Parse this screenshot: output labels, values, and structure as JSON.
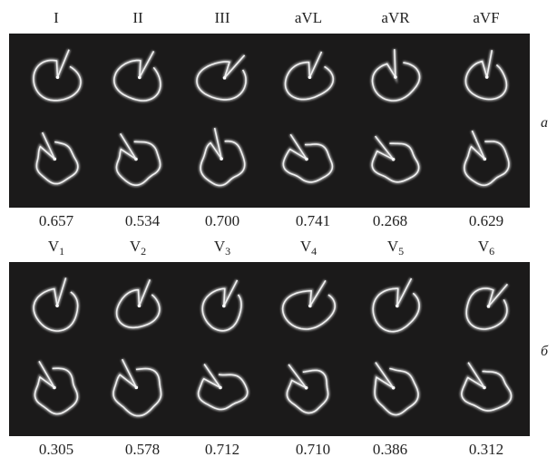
{
  "panels": [
    {
      "label": "а",
      "leads": [
        "I",
        "II",
        "III",
        "aVL",
        "aVR",
        "aVF"
      ],
      "values": [
        "0.657",
        "0.534",
        "0.700",
        "0.741",
        "0.268",
        "0.629"
      ]
    },
    {
      "label": "б",
      "leads": [
        {
          "base": "V",
          "sub": "1"
        },
        {
          "base": "V",
          "sub": "2"
        },
        {
          "base": "V",
          "sub": "3"
        },
        {
          "base": "V",
          "sub": "4"
        },
        {
          "base": "V",
          "sub": "5"
        },
        {
          "base": "V",
          "sub": "6"
        }
      ],
      "values": [
        "0.305",
        "0.578",
        "0.712",
        "0.710",
        "0.386",
        "0.312"
      ]
    }
  ]
}
